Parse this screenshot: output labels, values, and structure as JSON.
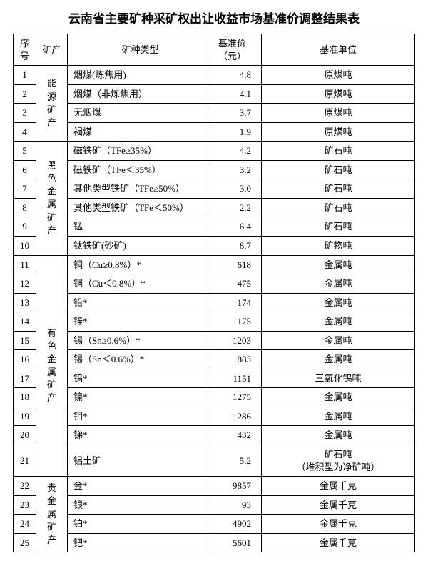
{
  "title": "云南省主要矿种采矿权出让收益市场基准价调整结果表",
  "headers": {
    "idx": "序号",
    "cat": "矿产",
    "type": "矿种类型",
    "price": "基准价（元）",
    "unit": "基准单位"
  },
  "categories": [
    {
      "label": "能源矿产",
      "span": 4
    },
    {
      "label": "黑色金属矿产",
      "span": 6
    },
    {
      "label": "有色金属矿产",
      "span": 11
    },
    {
      "label": "贵金属矿产",
      "span": 4
    }
  ],
  "rows": [
    {
      "idx": "1",
      "type": "烟煤(炼焦用)",
      "price": "4.8",
      "unit": "原煤吨"
    },
    {
      "idx": "2",
      "type": "烟煤（非炼焦用）",
      "price": "4.1",
      "unit": "原煤吨"
    },
    {
      "idx": "3",
      "type": "无烟煤",
      "price": "3.7",
      "unit": "原煤吨"
    },
    {
      "idx": "4",
      "type": "褐煤",
      "price": "1.9",
      "unit": "原煤吨"
    },
    {
      "idx": "5",
      "type": "磁铁矿（TFe≥35%）",
      "price": "4.2",
      "unit": "矿石吨"
    },
    {
      "idx": "6",
      "type": "磁铁矿（TFe＜35%）",
      "price": "3.2",
      "unit": "矿石吨"
    },
    {
      "idx": "7",
      "type": "其他类型铁矿（TFe≥50%）",
      "price": "3.0",
      "unit": "矿石吨"
    },
    {
      "idx": "8",
      "type": "其他类型铁矿（TFe＜50%）",
      "price": "2.2",
      "unit": "矿石吨"
    },
    {
      "idx": "9",
      "type": "锰",
      "price": "6.4",
      "unit": "矿石吨"
    },
    {
      "idx": "10",
      "type": "钛铁矿(砂矿)",
      "price": "8.7",
      "unit": "矿物吨"
    },
    {
      "idx": "11",
      "type": "铜（Cu≥0.8%）*",
      "price": "618",
      "unit": "金属吨"
    },
    {
      "idx": "12",
      "type": "铜（Cu＜0.8%）*",
      "price": "475",
      "unit": "金属吨"
    },
    {
      "idx": "13",
      "type": "铅*",
      "price": "174",
      "unit": "金属吨"
    },
    {
      "idx": "14",
      "type": "锌*",
      "price": "175",
      "unit": "金属吨"
    },
    {
      "idx": "15",
      "type": "锡（Sn≥0.6%）*",
      "price": "1203",
      "unit": "金属吨"
    },
    {
      "idx": "16",
      "type": "锡（Sn＜0.6%）*",
      "price": "883",
      "unit": "金属吨"
    },
    {
      "idx": "17",
      "type": "钨*",
      "price": "1151",
      "unit": "三氧化钨吨"
    },
    {
      "idx": "18",
      "type": "镍*",
      "price": "1275",
      "unit": "金属吨"
    },
    {
      "idx": "19",
      "type": "钼*",
      "price": "1286",
      "unit": "金属吨"
    },
    {
      "idx": "20",
      "type": "锑*",
      "price": "432",
      "unit": "金属吨"
    },
    {
      "idx": "21",
      "type": "铝土矿",
      "price": "5.2",
      "unit": "矿石吨\n（堆积型为净矿吨）"
    },
    {
      "idx": "22",
      "type": "金*",
      "price": "9857",
      "unit": "金属千克"
    },
    {
      "idx": "23",
      "type": "银*",
      "price": "93",
      "unit": "金属千克"
    },
    {
      "idx": "24",
      "type": "铂*",
      "price": "4902",
      "unit": "金属千克"
    },
    {
      "idx": "25",
      "type": "钯*",
      "price": "5601",
      "unit": "金属千克"
    }
  ],
  "styles": {
    "border_color": "#000000",
    "background_color": "#ffffff",
    "title_fontsize": 17,
    "body_fontsize": 13
  }
}
